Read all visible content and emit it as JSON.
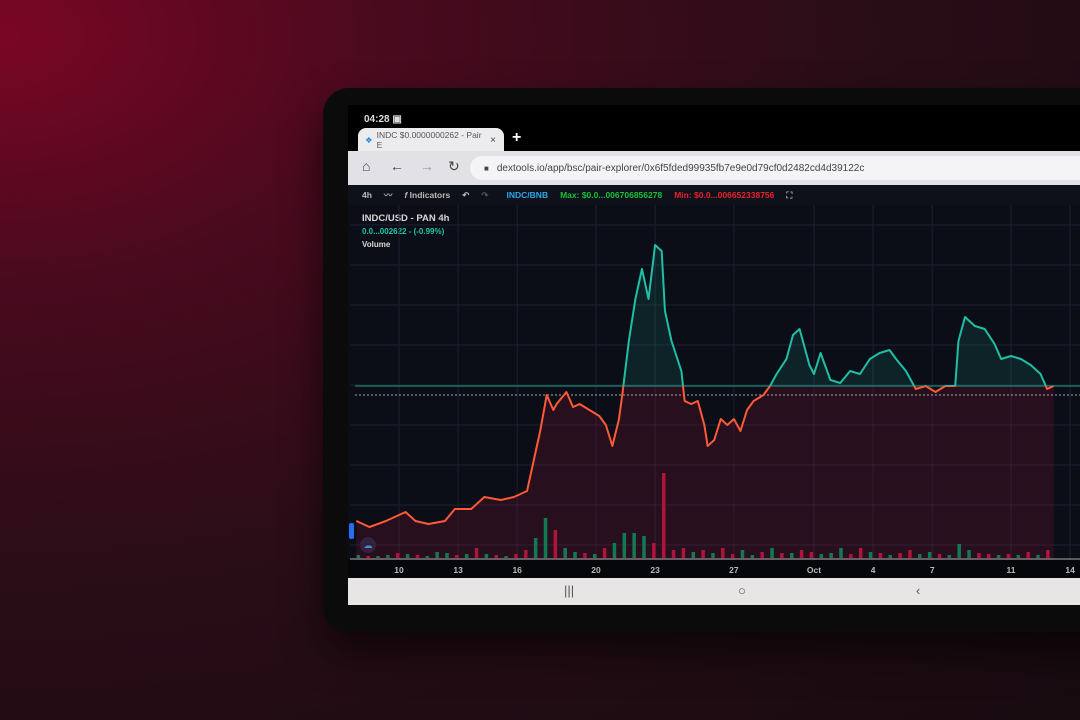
{
  "status_bar": {
    "time": "04:28",
    "icon": "image-notification-icon"
  },
  "browser": {
    "tab_title": "INDC $0.0000000262 - Pair E",
    "tab_close": "×",
    "new_tab": "+",
    "url": "dextools.io/app/bsc/pair-explorer/0x6f5fded99935fb7e9e0d79cf0d2482cd4d39122c"
  },
  "toolbar": {
    "interval": "4h",
    "indicators": "Indicators",
    "pair": "INDC/BNB",
    "max": "Max: $0.0...006706856278",
    "min": "Min: $0.0...006652338756",
    "colors": {
      "pair": "#2aa8e8",
      "max": "#18c23a",
      "min": "#e8202c"
    }
  },
  "legend": {
    "symbol": "INDC/USD - PAN  4h",
    "change": "0.0...002622 - (-0.99%)",
    "volume": "Volume"
  },
  "chart_data": {
    "type": "line",
    "x_ticks": [
      "10",
      "13",
      "16",
      "20",
      "23",
      "27",
      "Oct",
      "4",
      "7",
      "11",
      "14"
    ],
    "grid": true,
    "colors": {
      "above": "#1fbfa5",
      "below": "#ff5a36",
      "up_volume": "#127a52",
      "down_volume": "#b0143a"
    },
    "price": [
      [
        "09-07 20",
        13
      ],
      [
        "09-08 12",
        11
      ],
      [
        "09-09 08",
        13
      ],
      [
        "09-10 00",
        15
      ],
      [
        "09-10 08",
        16
      ],
      [
        "09-10 20",
        13
      ],
      [
        "09-11 12",
        12
      ],
      [
        "09-12 08",
        13
      ],
      [
        "09-12 20",
        17
      ],
      [
        "09-13 16",
        17
      ],
      [
        "09-14 08",
        21
      ],
      [
        "09-15 04",
        20
      ],
      [
        "09-15 20",
        21
      ],
      [
        "09-16 12",
        23
      ],
      [
        "09-16 20",
        33
      ],
      [
        "09-17 04",
        43
      ],
      [
        "09-17 12",
        55
      ],
      [
        "09-17 20",
        50
      ],
      [
        "09-18 00",
        52
      ],
      [
        "09-18 12",
        56
      ],
      [
        "09-18 20",
        51
      ],
      [
        "09-19 04",
        52
      ],
      [
        "09-19 16",
        50
      ],
      [
        "09-20 04",
        48
      ],
      [
        "09-20 12",
        45
      ],
      [
        "09-20 20",
        38
      ],
      [
        "09-21 04",
        47
      ],
      [
        "09-21 08",
        55
      ],
      [
        "09-21 16",
        73
      ],
      [
        "09-22 00",
        87
      ],
      [
        "09-22 08",
        97
      ],
      [
        "09-22 16",
        87
      ],
      [
        "09-23 00",
        105
      ],
      [
        "09-23 08",
        103
      ],
      [
        "09-23 12",
        83
      ],
      [
        "09-23 20",
        73
      ],
      [
        "09-24 08",
        63
      ],
      [
        "09-24 12",
        53
      ],
      [
        "09-24 20",
        52
      ],
      [
        "09-25 04",
        53
      ],
      [
        "09-25 12",
        45
      ],
      [
        "09-25 16",
        38
      ],
      [
        "09-26 00",
        40
      ],
      [
        "09-26 08",
        47
      ],
      [
        "09-26 16",
        45
      ],
      [
        "09-27 00",
        47
      ],
      [
        "09-27 08",
        43
      ],
      [
        "09-27 16",
        50
      ],
      [
        "09-28 00",
        53
      ],
      [
        "09-28 12",
        55
      ],
      [
        "09-28 20",
        58
      ],
      [
        "09-29 04",
        62
      ],
      [
        "09-29 16",
        67
      ],
      [
        "09-30 00",
        75
      ],
      [
        "09-30 08",
        77
      ],
      [
        "09-30 20",
        65
      ],
      [
        "10-01 00",
        62
      ],
      [
        "10-01 08",
        69
      ],
      [
        "10-01 20",
        60
      ],
      [
        "10-02 08",
        59
      ],
      [
        "10-02 20",
        63
      ],
      [
        "10-03 08",
        62
      ],
      [
        "10-03 20",
        67
      ],
      [
        "10-04 08",
        69
      ],
      [
        "10-04 20",
        70
      ],
      [
        "10-05 04",
        67
      ],
      [
        "10-05 16",
        63
      ],
      [
        "10-06 04",
        57
      ],
      [
        "10-06 16",
        58
      ],
      [
        "10-07 04",
        56
      ],
      [
        "10-07 16",
        58
      ],
      [
        "10-08 04",
        58
      ],
      [
        "10-08 08",
        73
      ],
      [
        "10-08 16",
        81
      ],
      [
        "10-09 04",
        78
      ],
      [
        "10-09 16",
        77
      ],
      [
        "10-10 04",
        72
      ],
      [
        "10-10 12",
        67
      ],
      [
        "10-11 00",
        68
      ],
      [
        "10-11 12",
        67
      ],
      [
        "10-12 00",
        65
      ],
      [
        "10-12 12",
        62
      ],
      [
        "10-12 20",
        57
      ],
      [
        "10-13 04",
        58
      ]
    ],
    "reference_price": 58,
    "last_price": 55,
    "volume_start": "09-08 00",
    "volume_step_hours": 12,
    "volume": [
      [
        3,
        "up"
      ],
      [
        2,
        "down"
      ],
      [
        2,
        "up"
      ],
      [
        3,
        "up"
      ],
      [
        5,
        "down"
      ],
      [
        4,
        "up"
      ],
      [
        3,
        "down"
      ],
      [
        2,
        "up"
      ],
      [
        6,
        "up"
      ],
      [
        5,
        "up"
      ],
      [
        3,
        "down"
      ],
      [
        4,
        "up"
      ],
      [
        10,
        "down"
      ],
      [
        4,
        "up"
      ],
      [
        3,
        "down"
      ],
      [
        2,
        "up"
      ],
      [
        4,
        "down"
      ],
      [
        8,
        "down"
      ],
      [
        20,
        "up"
      ],
      [
        40,
        "up"
      ],
      [
        28,
        "down"
      ],
      [
        10,
        "up"
      ],
      [
        6,
        "up"
      ],
      [
        5,
        "down"
      ],
      [
        4,
        "up"
      ],
      [
        10,
        "down"
      ],
      [
        15,
        "up"
      ],
      [
        25,
        "up"
      ],
      [
        25,
        "up"
      ],
      [
        22,
        "up"
      ],
      [
        15,
        "down"
      ],
      [
        85,
        "down"
      ],
      [
        8,
        "down"
      ],
      [
        10,
        "down"
      ],
      [
        6,
        "up"
      ],
      [
        8,
        "down"
      ],
      [
        5,
        "up"
      ],
      [
        10,
        "down"
      ],
      [
        4,
        "down"
      ],
      [
        8,
        "up"
      ],
      [
        3,
        "up"
      ],
      [
        6,
        "down"
      ],
      [
        10,
        "up"
      ],
      [
        5,
        "down"
      ],
      [
        5,
        "up"
      ],
      [
        8,
        "down"
      ],
      [
        6,
        "down"
      ],
      [
        4,
        "up"
      ],
      [
        5,
        "up"
      ],
      [
        10,
        "up"
      ],
      [
        4,
        "down"
      ],
      [
        10,
        "down"
      ],
      [
        6,
        "up"
      ],
      [
        5,
        "down"
      ],
      [
        3,
        "up"
      ],
      [
        5,
        "down"
      ],
      [
        8,
        "down"
      ],
      [
        4,
        "up"
      ],
      [
        6,
        "up"
      ],
      [
        4,
        "down"
      ],
      [
        3,
        "up"
      ],
      [
        14,
        "up"
      ],
      [
        8,
        "up"
      ],
      [
        5,
        "down"
      ],
      [
        4,
        "down"
      ],
      [
        3,
        "up"
      ],
      [
        4,
        "down"
      ],
      [
        3,
        "up"
      ],
      [
        6,
        "down"
      ],
      [
        3,
        "up"
      ],
      [
        8,
        "down"
      ]
    ]
  },
  "system_nav": {
    "recents": "|||",
    "home": "○",
    "back": "‹"
  }
}
